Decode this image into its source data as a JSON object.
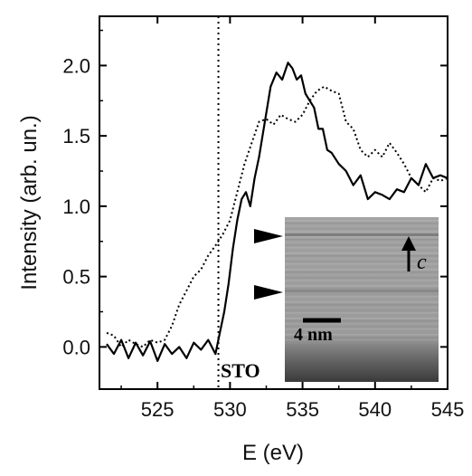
{
  "chart_data": {
    "type": "line",
    "title": "",
    "xlabel": "E (eV)",
    "ylabel": "Intensity (arb. un.)",
    "xlim": [
      521,
      545
    ],
    "ylim": [
      -0.3,
      2.35
    ],
    "x_ticks": [
      525,
      530,
      535,
      540,
      545
    ],
    "x_tick_labels": [
      "525",
      "530",
      "535",
      "540",
      "545"
    ],
    "y_ticks": [
      0.0,
      0.5,
      1.0,
      1.5,
      2.0
    ],
    "y_tick_labels": [
      "0.0",
      "0.5",
      "1.0",
      "1.5",
      "2.0"
    ],
    "grid": false,
    "reference_line": {
      "x": 529.2,
      "style": "dotted"
    },
    "series": [
      {
        "style": "solid",
        "color": "#000000",
        "x": [
          521.5,
          522,
          522.5,
          523,
          523.5,
          524,
          524.5,
          525,
          525.5,
          526,
          526.5,
          527,
          527.5,
          528,
          528.5,
          529,
          529.3,
          529.6,
          529.9,
          530.2,
          530.5,
          530.8,
          531.1,
          531.4,
          531.7,
          532,
          532.4,
          532.8,
          533.2,
          533.6,
          534,
          534.3,
          534.6,
          534.9,
          535.2,
          535.5,
          535.8,
          536.1,
          536.4,
          536.7,
          537,
          537.5,
          538,
          538.5,
          539,
          539.5,
          540,
          540.5,
          541,
          541.5,
          542,
          542.5,
          543,
          543.5,
          544,
          544.5,
          545
        ],
        "y": [
          0.02,
          -0.05,
          0.05,
          -0.08,
          0.03,
          -0.06,
          0.04,
          -0.1,
          0.02,
          -0.05,
          0.0,
          -0.08,
          0.03,
          -0.02,
          0.05,
          -0.05,
          0.1,
          0.25,
          0.45,
          0.7,
          0.9,
          1.05,
          1.1,
          1.0,
          1.2,
          1.35,
          1.6,
          1.85,
          1.95,
          1.9,
          2.02,
          1.98,
          1.9,
          1.93,
          1.8,
          1.75,
          1.7,
          1.55,
          1.55,
          1.4,
          1.38,
          1.3,
          1.25,
          1.15,
          1.22,
          1.05,
          1.1,
          1.08,
          1.05,
          1.12,
          1.1,
          1.2,
          1.15,
          1.3,
          1.2,
          1.22,
          1.2
        ]
      },
      {
        "style": "dotted",
        "color": "#000000",
        "x": [
          521.5,
          522,
          522.5,
          523,
          523.5,
          524,
          524.5,
          525,
          525.5,
          526,
          526.5,
          527,
          527.5,
          528,
          528.5,
          529,
          529.5,
          530,
          530.5,
          531,
          531.5,
          532,
          532.5,
          533,
          533.5,
          534,
          534.5,
          535,
          535.5,
          536,
          536.5,
          537,
          537.5,
          538,
          538.5,
          539,
          539.5,
          540,
          540.5,
          541,
          541.5,
          542,
          542.5,
          543,
          543.5,
          544,
          544.5,
          545
        ],
        "y": [
          0.1,
          0.08,
          0.0,
          0.05,
          0.02,
          0.0,
          0.05,
          0.03,
          0.05,
          0.15,
          0.3,
          0.4,
          0.5,
          0.55,
          0.65,
          0.72,
          0.8,
          0.9,
          1.1,
          1.3,
          1.45,
          1.6,
          1.62,
          1.58,
          1.65,
          1.62,
          1.6,
          1.65,
          1.75,
          1.82,
          1.85,
          1.82,
          1.8,
          1.6,
          1.55,
          1.4,
          1.35,
          1.4,
          1.35,
          1.45,
          1.38,
          1.3,
          1.2,
          1.15,
          1.1,
          1.2,
          1.18,
          1.2
        ]
      }
    ],
    "inset": {
      "label_sto": "STO",
      "scale_bar_label": "4 nm",
      "axis_label": "c"
    }
  }
}
